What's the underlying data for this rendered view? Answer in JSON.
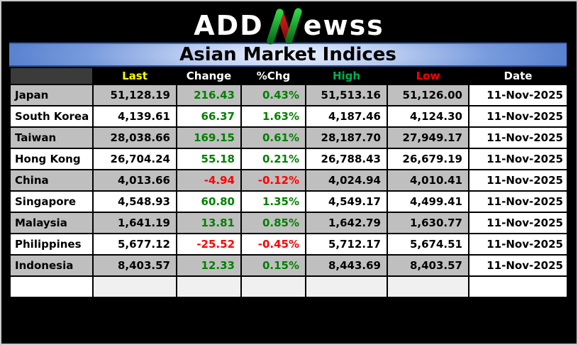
{
  "logo": {
    "prefix": "ADD",
    "n_letter": "N",
    "suffix": "ewss",
    "n_green": "#2ed344",
    "n_green_dark": "#0b6e1e",
    "n_red": "#d41111",
    "n_red_dark": "#7a0b0b"
  },
  "title": "Asian Market Indices",
  "table": {
    "headers": [
      {
        "label": "",
        "color": "#ffffff"
      },
      {
        "label": "Last",
        "color": "#ffff00"
      },
      {
        "label": "Change",
        "color": "#ffffff"
      },
      {
        "label": "%Chg",
        "color": "#ffffff"
      },
      {
        "label": "High",
        "color": "#00b050"
      },
      {
        "label": "Low",
        "color": "#ff0000"
      },
      {
        "label": "Date",
        "color": "#ffffff"
      }
    ],
    "empty_row_cells": [
      "",
      "",
      "",
      "",
      "",
      "",
      ""
    ]
  },
  "colors": {
    "positive": "#008000",
    "negative": "#ff0000",
    "row_gray": "#bfbfbf",
    "row_white": "#ffffff",
    "header_bg": "#000000",
    "corner_cell_bg": "#3b3b3b",
    "title_text": "#000000"
  },
  "chart_data": {
    "type": "table",
    "title": "Asian Market Indices",
    "columns": [
      "",
      "Last",
      "Change",
      "%Chg",
      "High",
      "Low",
      "Date"
    ],
    "rows": [
      [
        "Japan",
        "51,128.19",
        "216.43",
        "0.43%",
        "51,513.16",
        "51,126.00",
        "11-Nov-2025"
      ],
      [
        "South Korea",
        "4,139.61",
        "66.37",
        "1.63%",
        "4,187.46",
        "4,124.30",
        "11-Nov-2025"
      ],
      [
        "Taiwan",
        "28,038.66",
        "169.15",
        "0.61%",
        "28,187.70",
        "27,949.17",
        "11-Nov-2025"
      ],
      [
        "Hong Kong",
        "26,704.24",
        "55.18",
        "0.21%",
        "26,788.43",
        "26,679.19",
        "11-Nov-2025"
      ],
      [
        "China",
        "4,013.66",
        "-4.94",
        "-0.12%",
        "4,024.94",
        "4,010.41",
        "11-Nov-2025"
      ],
      [
        "Singapore",
        "4,548.93",
        "60.80",
        "1.35%",
        "4,549.17",
        "4,499.41",
        "11-Nov-2025"
      ],
      [
        "Malaysia",
        "1,641.19",
        "13.81",
        "0.85%",
        "1,642.79",
        "1,630.77",
        "11-Nov-2025"
      ],
      [
        "Philippines",
        "5,677.12",
        "-25.52",
        "-0.45%",
        "5,712.17",
        "5,674.51",
        "11-Nov-2025"
      ],
      [
        "Indonesia",
        "8,403.57",
        "12.33",
        "0.15%",
        "8,443.69",
        "8,403.57",
        "11-Nov-2025"
      ]
    ],
    "row_directions": [
      "up",
      "up",
      "up",
      "up",
      "down",
      "up",
      "up",
      "down",
      "up"
    ],
    "row_shades": [
      "gray",
      "white",
      "gray",
      "white",
      "gray",
      "white",
      "gray",
      "white",
      "gray"
    ]
  }
}
